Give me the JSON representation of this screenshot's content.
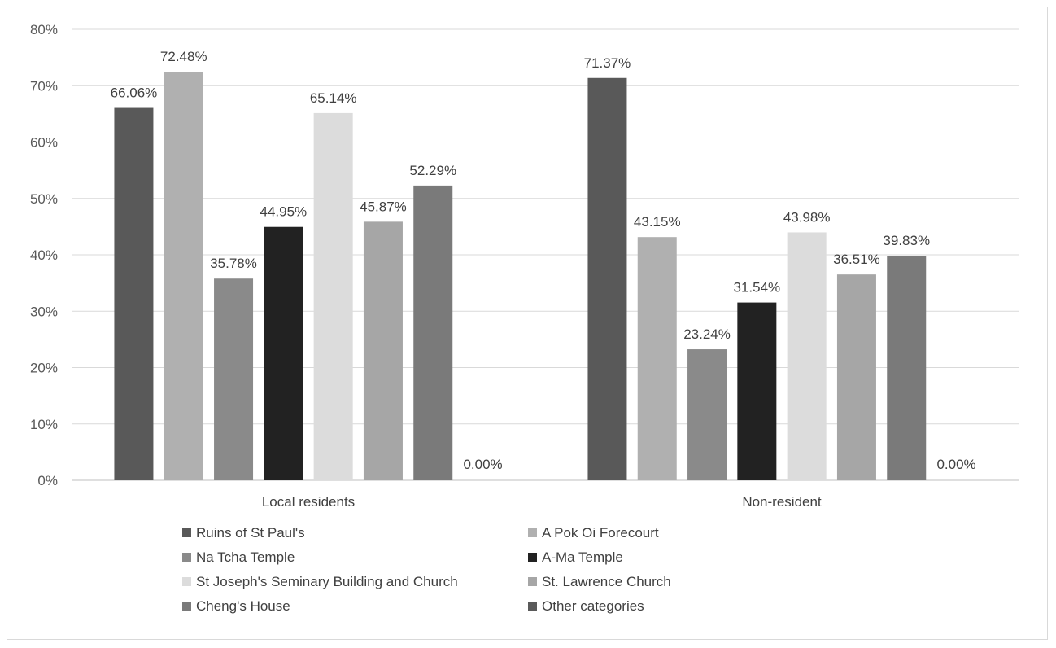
{
  "chart_data": {
    "type": "bar",
    "categories": [
      "Local residents",
      "Non-resident"
    ],
    "ylim": [
      0,
      80
    ],
    "y_ticks": [
      "0%",
      "10%",
      "20%",
      "30%",
      "40%",
      "50%",
      "60%",
      "70%",
      "80%"
    ],
    "grid": true,
    "legend_position": "bottom",
    "series": [
      {
        "name": "Ruins of St Paul's",
        "values": [
          66.06,
          71.37
        ],
        "labels": [
          "66.06%",
          "71.37%"
        ],
        "color": "#595959"
      },
      {
        "name": "A Pok Oi Forecourt",
        "values": [
          72.48,
          43.15
        ],
        "labels": [
          "72.48%",
          "43.15%"
        ],
        "color": "#b0b0b0"
      },
      {
        "name": "Na Tcha Temple",
        "values": [
          35.78,
          23.24
        ],
        "labels": [
          "35.78%",
          "23.24%"
        ],
        "color": "#8a8a8a"
      },
      {
        "name": "A-Ma Temple",
        "values": [
          44.95,
          31.54
        ],
        "labels": [
          "44.95%",
          "31.54%"
        ],
        "color": "#222222"
      },
      {
        "name": "St Joseph's Seminary Building and Church",
        "values": [
          65.14,
          43.98
        ],
        "labels": [
          "65.14%",
          "43.98%"
        ],
        "color": "#dcdcdc"
      },
      {
        "name": "St. Lawrence Church",
        "values": [
          45.87,
          36.51
        ],
        "labels": [
          "45.87%",
          "36.51%"
        ],
        "color": "#a6a6a6"
      },
      {
        "name": "Cheng's House",
        "values": [
          52.29,
          39.83
        ],
        "labels": [
          "52.29%",
          "39.83%"
        ],
        "color": "#7a7a7a"
      },
      {
        "name": "Other categories",
        "values": [
          0.0,
          0.0
        ],
        "labels": [
          "0.00%",
          "0.00%"
        ],
        "color": "#5a5a5a"
      }
    ]
  }
}
